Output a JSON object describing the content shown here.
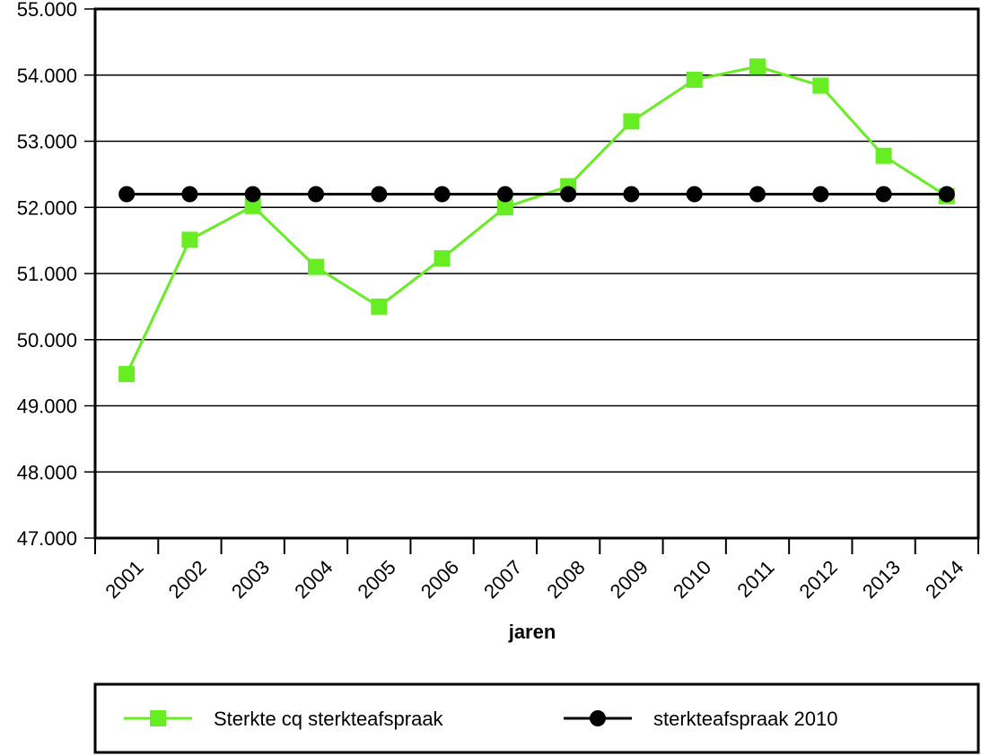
{
  "chart_data": {
    "type": "line",
    "title": "",
    "xlabel": "jaren",
    "ylabel": "",
    "categories": [
      "2001",
      "2002",
      "2003",
      "2004",
      "2005",
      "2006",
      "2007",
      "2008",
      "2009",
      "2010",
      "2011",
      "2012",
      "2013",
      "2014"
    ],
    "ylim": [
      47000,
      55000
    ],
    "yticks": [
      47000,
      48000,
      49000,
      50000,
      51000,
      52000,
      53000,
      54000,
      55000
    ],
    "ytick_labels": [
      "47.000",
      "48.000",
      "49.000",
      "50.000",
      "51.000",
      "52.000",
      "53.000",
      "54.000",
      "55.000"
    ],
    "grid": "horizontal",
    "legend_placement": "bottom",
    "series": [
      {
        "name": "Sterkte cq sterkteafspraak",
        "color": "#66ee22",
        "marker": "square",
        "values": [
          49480,
          51510,
          52020,
          51100,
          50500,
          51230,
          52000,
          52320,
          53300,
          53930,
          54130,
          53840,
          52780,
          52170
        ]
      },
      {
        "name": "sterkteafspraak 2010",
        "color": "#000000",
        "marker": "circle",
        "values": [
          52200,
          52200,
          52200,
          52200,
          52200,
          52200,
          52200,
          52200,
          52200,
          52200,
          52200,
          52200,
          52200,
          52200
        ]
      }
    ]
  }
}
